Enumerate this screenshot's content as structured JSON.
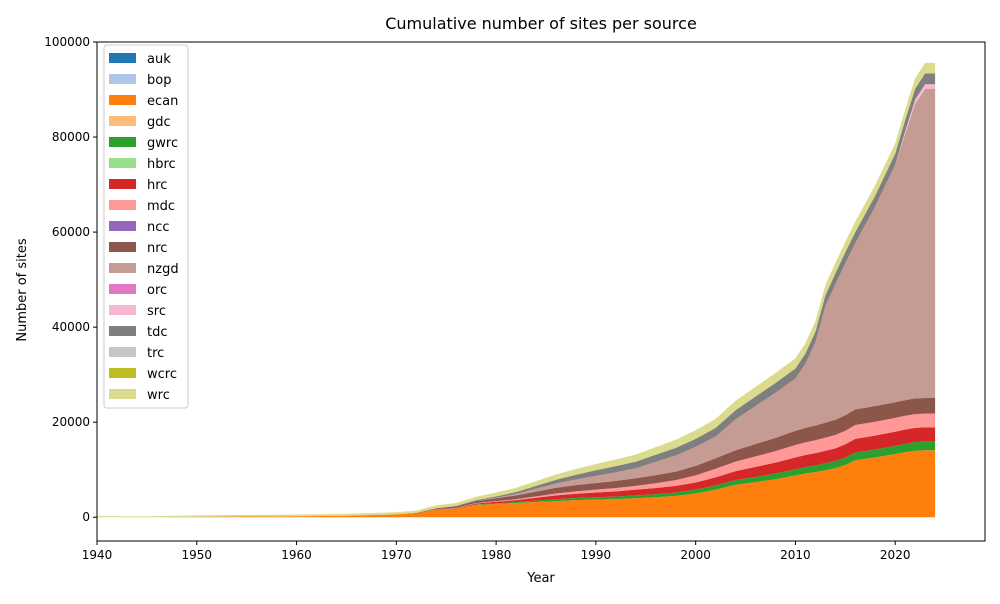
{
  "chart_data": {
    "type": "area",
    "stacked": true,
    "title": "Cumulative number of sites per source",
    "xlabel": "Year",
    "ylabel": "Number of sites",
    "xlim": [
      1940,
      2029
    ],
    "ylim": [
      -5000,
      100000
    ],
    "xticks": [
      1940,
      1950,
      1960,
      1970,
      1980,
      1990,
      2000,
      2010,
      2020
    ],
    "yticks": [
      0,
      20000,
      40000,
      60000,
      80000,
      100000
    ],
    "xtick_labels": [
      "1940",
      "1950",
      "1960",
      "1970",
      "1980",
      "1990",
      "2000",
      "2010",
      "2020"
    ],
    "ytick_labels": [
      "0",
      "20000",
      "40000",
      "60000",
      "80000",
      "100000"
    ],
    "legend_position": "top-left",
    "grid": false,
    "x": [
      1940,
      1945,
      1950,
      1955,
      1960,
      1965,
      1970,
      1972,
      1974,
      1976,
      1978,
      1980,
      1982,
      1984,
      1986,
      1988,
      1990,
      1992,
      1994,
      1996,
      1998,
      2000,
      2002,
      2004,
      2006,
      2008,
      2010,
      2011,
      2012,
      2013,
      2014,
      2015,
      2016,
      2018,
      2020,
      2021,
      2022,
      2023,
      2024
    ],
    "series": [
      {
        "name": "auk",
        "color": "#1f77b4",
        "values": [
          0,
          0,
          0,
          0,
          0,
          0,
          0,
          0,
          0,
          0,
          0,
          0,
          0,
          0,
          0,
          0,
          0,
          0,
          0,
          0,
          0,
          0,
          0,
          0,
          0,
          0,
          0,
          0,
          0,
          0,
          0,
          0,
          0,
          0,
          0,
          0,
          0,
          0,
          0
        ]
      },
      {
        "name": "bop",
        "color": "#aec7e8",
        "values": [
          0,
          0,
          0,
          0,
          0,
          0,
          0,
          0,
          0,
          0,
          0,
          0,
          0,
          0,
          0,
          0,
          0,
          0,
          0,
          0,
          0,
          0,
          0,
          0,
          0,
          0,
          0,
          0,
          0,
          0,
          0,
          0,
          0,
          0,
          0,
          0,
          0,
          0,
          0
        ]
      },
      {
        "name": "ecan",
        "color": "#ff7f0e",
        "values": [
          0,
          0,
          100,
          150,
          200,
          300,
          600,
          800,
          1600,
          1800,
          2600,
          2800,
          3000,
          3200,
          3400,
          3600,
          3700,
          3800,
          4000,
          4200,
          4500,
          5000,
          5800,
          6800,
          7400,
          8000,
          8800,
          9200,
          9500,
          9900,
          10300,
          11000,
          12000,
          12600,
          13300,
          13700,
          14000,
          14100,
          14100
        ]
      },
      {
        "name": "gdc",
        "color": "#ffbb78",
        "values": [
          0,
          0,
          0,
          0,
          0,
          0,
          0,
          0,
          0,
          0,
          0,
          0,
          0,
          0,
          0,
          0,
          0,
          0,
          0,
          0,
          0,
          0,
          0,
          0,
          0,
          0,
          0,
          0,
          0,
          0,
          0,
          0,
          0,
          0,
          0,
          0,
          0,
          0,
          0
        ]
      },
      {
        "name": "gwrc",
        "color": "#2ca02c",
        "values": [
          0,
          0,
          0,
          0,
          0,
          0,
          0,
          0,
          50,
          50,
          100,
          150,
          200,
          300,
          400,
          450,
          500,
          550,
          600,
          650,
          700,
          800,
          900,
          1000,
          1100,
          1200,
          1300,
          1350,
          1400,
          1450,
          1500,
          1550,
          1600,
          1650,
          1700,
          1750,
          1800,
          1800,
          1800
        ]
      },
      {
        "name": "hbrc",
        "color": "#98df8a",
        "values": [
          0,
          0,
          0,
          0,
          0,
          0,
          0,
          0,
          0,
          0,
          0,
          0,
          0,
          0,
          0,
          0,
          0,
          0,
          0,
          0,
          0,
          0,
          0,
          0,
          0,
          0,
          0,
          0,
          0,
          0,
          0,
          0,
          0,
          0,
          0,
          0,
          0,
          0,
          0
        ]
      },
      {
        "name": "hrc",
        "color": "#d62728",
        "values": [
          0,
          0,
          0,
          0,
          0,
          0,
          0,
          0,
          50,
          100,
          200,
          300,
          400,
          600,
          800,
          900,
          1000,
          1100,
          1200,
          1300,
          1400,
          1500,
          1700,
          1900,
          2100,
          2300,
          2500,
          2550,
          2600,
          2650,
          2700,
          2800,
          2900,
          2950,
          3000,
          3000,
          3000,
          3000,
          3000
        ]
      },
      {
        "name": "mdc",
        "color": "#ff9896",
        "values": [
          0,
          0,
          0,
          0,
          0,
          0,
          0,
          0,
          0,
          50,
          100,
          150,
          200,
          300,
          400,
          500,
          600,
          700,
          800,
          1000,
          1200,
          1500,
          1800,
          2000,
          2200,
          2400,
          2600,
          2650,
          2700,
          2750,
          2800,
          2850,
          2900,
          2900,
          2900,
          2900,
          2900,
          2900,
          2900
        ]
      },
      {
        "name": "ncc",
        "color": "#9467bd",
        "values": [
          0,
          0,
          0,
          0,
          0,
          0,
          0,
          0,
          0,
          0,
          0,
          0,
          0,
          0,
          0,
          0,
          0,
          0,
          0,
          0,
          0,
          0,
          0,
          0,
          0,
          0,
          0,
          0,
          0,
          0,
          0,
          0,
          0,
          0,
          0,
          0,
          0,
          0,
          0
        ]
      },
      {
        "name": "nrc",
        "color": "#8c564b",
        "values": [
          0,
          0,
          0,
          0,
          0,
          0,
          0,
          100,
          200,
          300,
          400,
          600,
          800,
          1000,
          1200,
          1300,
          1400,
          1500,
          1600,
          1700,
          1800,
          2000,
          2200,
          2400,
          2600,
          2800,
          3000,
          3050,
          3100,
          3150,
          3200,
          3250,
          3300,
          3300,
          3300,
          3300,
          3300,
          3300,
          3300
        ]
      },
      {
        "name": "nzgd",
        "color": "#c49c94",
        "values": [
          0,
          0,
          0,
          0,
          0,
          0,
          0,
          0,
          0,
          0,
          0,
          100,
          300,
          600,
          900,
          1200,
          1500,
          1800,
          2100,
          2800,
          3400,
          4000,
          4600,
          6500,
          8000,
          9500,
          11000,
          13500,
          17500,
          24500,
          28500,
          32000,
          35000,
          42000,
          50000,
          56000,
          62000,
          65000,
          65000
        ]
      },
      {
        "name": "orc",
        "color": "#e377c2",
        "values": [
          0,
          0,
          0,
          0,
          0,
          0,
          0,
          0,
          0,
          0,
          0,
          0,
          0,
          0,
          0,
          0,
          0,
          0,
          0,
          0,
          0,
          0,
          0,
          0,
          0,
          0,
          0,
          0,
          0,
          0,
          0,
          0,
          0,
          0,
          0,
          0,
          0,
          0,
          0
        ]
      },
      {
        "name": "src",
        "color": "#f7b6d2",
        "values": [
          0,
          0,
          0,
          0,
          0,
          0,
          0,
          0,
          0,
          0,
          0,
          0,
          0,
          0,
          0,
          0,
          0,
          0,
          0,
          0,
          0,
          0,
          0,
          0,
          0,
          0,
          0,
          0,
          0,
          0,
          0,
          0,
          0,
          0,
          0,
          600,
          900,
          1000,
          1000
        ]
      },
      {
        "name": "tdc",
        "color": "#7f7f7f",
        "values": [
          0,
          0,
          0,
          0,
          0,
          0,
          0,
          0,
          0,
          100,
          200,
          300,
          400,
          600,
          800,
          1000,
          1200,
          1300,
          1400,
          1500,
          1600,
          1700,
          1800,
          1900,
          2000,
          2050,
          2100,
          2150,
          2200,
          2250,
          2300,
          2300,
          2300,
          2300,
          2300,
          2300,
          2300,
          2300,
          2300
        ]
      },
      {
        "name": "trc",
        "color": "#c7c7c7",
        "values": [
          0,
          0,
          0,
          0,
          0,
          0,
          0,
          0,
          0,
          0,
          0,
          0,
          0,
          0,
          0,
          0,
          0,
          0,
          0,
          0,
          0,
          0,
          0,
          0,
          0,
          0,
          0,
          0,
          0,
          0,
          0,
          0,
          0,
          0,
          0,
          0,
          0,
          0,
          0
        ]
      },
      {
        "name": "wcrc",
        "color": "#bcbd22",
        "values": [
          0,
          0,
          0,
          0,
          0,
          0,
          0,
          0,
          0,
          0,
          0,
          0,
          0,
          0,
          0,
          0,
          0,
          0,
          0,
          0,
          0,
          0,
          0,
          0,
          0,
          0,
          0,
          0,
          0,
          0,
          0,
          0,
          0,
          0,
          0,
          0,
          0,
          0,
          0
        ]
      },
      {
        "name": "wrc",
        "color": "#dbdb8d",
        "values": [
          250,
          200,
          300,
          350,
          350,
          400,
          450,
          500,
          600,
          600,
          700,
          800,
          900,
          1000,
          1100,
          1200,
          1300,
          1400,
          1500,
          1600,
          1700,
          1800,
          1900,
          2000,
          2050,
          2100,
          2150,
          2150,
          2200,
          2200,
          2200,
          2200,
          2200,
          2200,
          2200,
          2200,
          2200,
          2200,
          2200
        ]
      }
    ]
  }
}
